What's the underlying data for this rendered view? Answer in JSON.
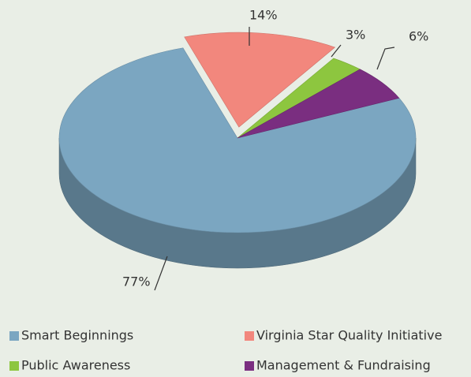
{
  "chart_data": {
    "type": "pie",
    "categories": [
      "Smart Beginnings",
      "Virginia Star Quality Initiative",
      "Public Awareness",
      "Management & Fundraising"
    ],
    "values": [
      77,
      14,
      3,
      6
    ],
    "value_labels": [
      "77%",
      "14%",
      "3%",
      "6%"
    ],
    "colors": [
      "#7ba6c1",
      "#f2877d",
      "#8dc63f",
      "#7a2e80"
    ],
    "legend": "bottom"
  }
}
